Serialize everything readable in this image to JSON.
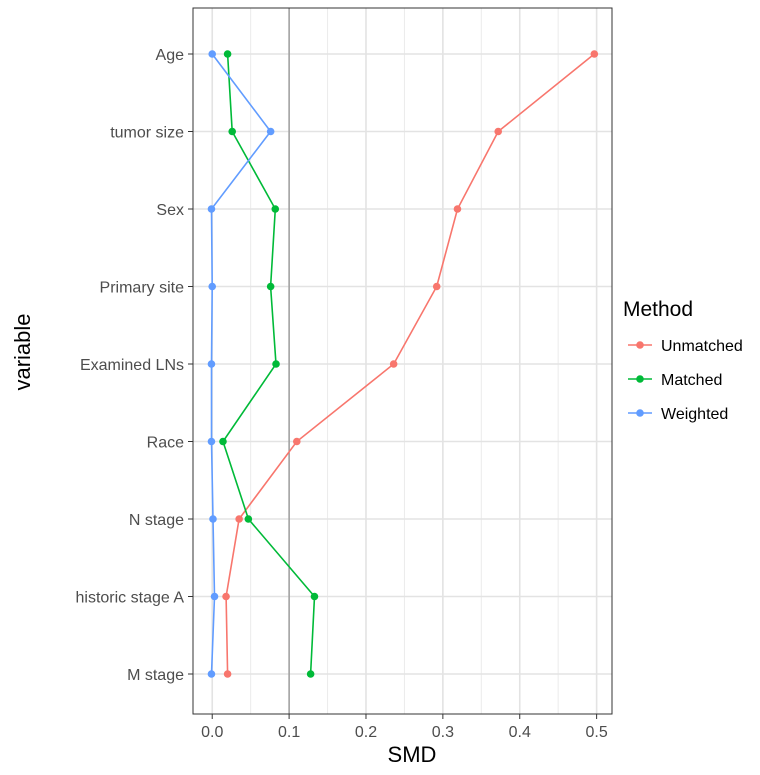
{
  "chart_data": {
    "type": "line",
    "xlabel": "SMD",
    "ylabel": "variable",
    "xlim": [
      -0.025,
      0.52
    ],
    "x_ticks": [
      0.0,
      0.1,
      0.2,
      0.3,
      0.4,
      0.5
    ],
    "x_tick_labels": [
      "0.0",
      "0.1",
      "0.2",
      "0.3",
      "0.4",
      "0.5"
    ],
    "categories": [
      "Age",
      "tumor size",
      "Sex",
      "Primary site",
      "Examined LNs",
      "Race",
      "N stage",
      "historic stage A",
      "M stage"
    ],
    "reference_line_x": 0.1,
    "grid": true,
    "legend": {
      "title": "Method",
      "position": "right"
    },
    "series": [
      {
        "name": "Unmatched",
        "color": "#F8766D",
        "values": [
          0.497,
          0.372,
          0.319,
          0.292,
          0.236,
          0.11,
          0.035,
          0.018,
          0.02
        ]
      },
      {
        "name": "Matched",
        "color": "#00BA38",
        "values": [
          0.02,
          0.026,
          0.082,
          0.076,
          0.083,
          0.014,
          0.047,
          0.133,
          0.128
        ]
      },
      {
        "name": "Weighted",
        "color": "#619CFF",
        "values": [
          0.0,
          0.076,
          -0.001,
          0.0,
          -0.001,
          -0.001,
          0.001,
          0.003,
          -0.001
        ]
      }
    ]
  }
}
